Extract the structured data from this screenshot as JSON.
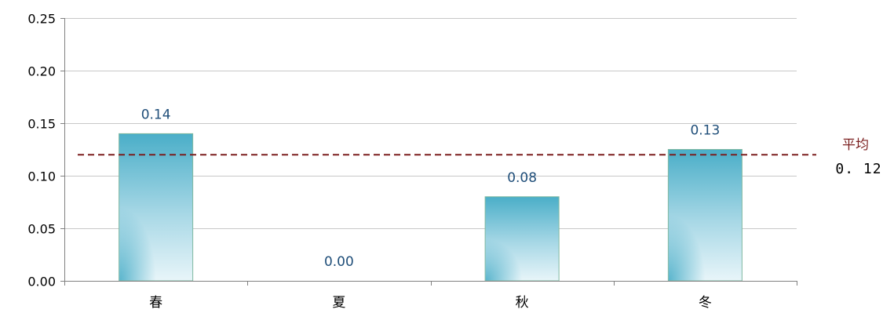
{
  "chart_data": {
    "type": "bar",
    "unit_label": "",
    "categories": [
      "春",
      "夏",
      "秋",
      "冬"
    ],
    "values": [
      0.14,
      0.0,
      0.08,
      0.125
    ],
    "value_labels": [
      "0.14",
      "0.00",
      "0.08",
      "0.13"
    ],
    "ylim": [
      0,
      0.25
    ],
    "yticks": [
      0.0,
      0.05,
      0.1,
      0.15,
      0.2,
      0.25
    ],
    "ytick_labels": [
      "0.00",
      "0.05",
      "0.10",
      "0.15",
      "0.20",
      "0.25"
    ],
    "grid": true,
    "average": {
      "value": 0.12,
      "name": "平均",
      "label": "0. 12",
      "color": "#7b1f1f"
    },
    "bar_color_top": "#4aaec8",
    "bar_color_bottom": "#e8f4f8"
  }
}
